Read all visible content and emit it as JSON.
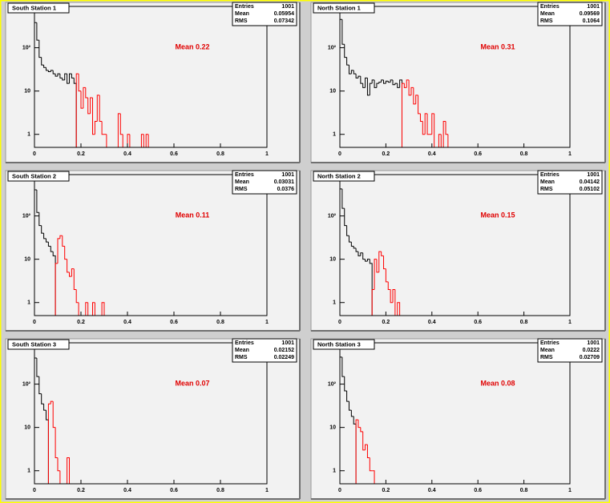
{
  "chart_data": [
    {
      "type": "histogram",
      "title": "South Station 1",
      "annotation": "Mean 0.22",
      "stats": [
        {
          "label": "Entries",
          "value": 1001
        },
        {
          "label": "Mean",
          "value": 0.05954
        },
        {
          "label": "RMS",
          "value": 0.07342
        }
      ],
      "bins": [
        0,
        0.01,
        0.02,
        0.03,
        0.04,
        0.05,
        0.06,
        0.07,
        0.08,
        0.09,
        0.1,
        0.11,
        0.12,
        0.13,
        0.14,
        0.15,
        0.16,
        0.17,
        0.18,
        0.19,
        0.2,
        0.21,
        0.22,
        0.23,
        0.24,
        0.25,
        0.26,
        0.27,
        0.28,
        0.29,
        0.3,
        0.31,
        0.32,
        0.33,
        0.34,
        0.35,
        0.36,
        0.37,
        0.38,
        0.39,
        0.4,
        0.41,
        0.42,
        0.43,
        0.44,
        0.45,
        0.46,
        0.47,
        0.48,
        0.49,
        0.5
      ],
      "series": [
        {
          "color": "#000000",
          "values": [
            380,
            150,
            60,
            40,
            35,
            30,
            28,
            30,
            25,
            22,
            25,
            20,
            18,
            25,
            15,
            25,
            20,
            15,
            null,
            null,
            null,
            null,
            null,
            null,
            null,
            null,
            null,
            null,
            null,
            null,
            null,
            null,
            null,
            null,
            null,
            null,
            null,
            null,
            null,
            null,
            null,
            null,
            null,
            null,
            null,
            null,
            null,
            null,
            null,
            null
          ]
        },
        {
          "color": "#ff0000",
          "values": [
            null,
            null,
            null,
            null,
            null,
            null,
            null,
            null,
            null,
            null,
            null,
            null,
            null,
            null,
            null,
            null,
            null,
            null,
            25,
            10,
            4,
            12,
            7,
            3,
            7,
            1,
            2,
            8,
            2,
            1,
            1,
            0,
            0,
            0,
            0,
            0,
            3,
            1,
            0,
            0,
            1,
            0,
            0,
            0,
            0,
            0,
            1,
            0,
            1,
            0
          ]
        }
      ],
      "xlim": [
        0,
        1
      ],
      "xticks": [
        0,
        0.2,
        0.4,
        0.6,
        0.8,
        1
      ],
      "ylim": [
        0.5,
        900
      ],
      "yticks": [
        1,
        10,
        {
          "value": 100,
          "label": "10²"
        }
      ],
      "log_y": true
    },
    {
      "type": "histogram",
      "title": "North Station 1",
      "annotation": "Mean 0.31",
      "stats": [
        {
          "label": "Entries",
          "value": 1001
        },
        {
          "label": "Mean",
          "value": 0.09569
        },
        {
          "label": "RMS",
          "value": 0.1064
        }
      ],
      "bins": [
        0,
        0.01,
        0.02,
        0.03,
        0.04,
        0.05,
        0.06,
        0.07,
        0.08,
        0.09,
        0.1,
        0.11,
        0.12,
        0.13,
        0.14,
        0.15,
        0.16,
        0.17,
        0.18,
        0.19,
        0.2,
        0.21,
        0.22,
        0.23,
        0.24,
        0.25,
        0.26,
        0.27,
        0.28,
        0.29,
        0.3,
        0.31,
        0.32,
        0.33,
        0.34,
        0.35,
        0.36,
        0.37,
        0.38,
        0.39,
        0.4,
        0.41,
        0.42,
        0.43,
        0.44,
        0.45,
        0.46,
        0.47,
        0.48
      ],
      "series": [
        {
          "color": "#000000",
          "values": [
            450,
            120,
            60,
            40,
            25,
            30,
            25,
            20,
            22,
            15,
            12,
            20,
            8,
            15,
            18,
            12,
            15,
            16,
            18,
            15,
            17,
            16,
            18,
            14,
            15,
            12,
            18,
            null,
            null,
            null,
            null,
            null,
            null,
            null,
            null,
            null,
            null,
            null,
            null,
            null,
            null,
            null,
            null,
            null,
            null,
            null,
            null,
            null
          ]
        },
        {
          "color": "#ff0000",
          "values": [
            null,
            null,
            null,
            null,
            null,
            null,
            null,
            null,
            null,
            null,
            null,
            null,
            null,
            null,
            null,
            null,
            null,
            null,
            null,
            null,
            null,
            null,
            null,
            null,
            null,
            null,
            null,
            15,
            12,
            18,
            8,
            12,
            5,
            8,
            3,
            2,
            1,
            3,
            1,
            1,
            3,
            0,
            0,
            1,
            0,
            2,
            1,
            0
          ]
        }
      ],
      "xlim": [
        0,
        1
      ],
      "xticks": [
        0,
        0.2,
        0.4,
        0.6,
        0.8,
        1
      ],
      "ylim": [
        0.5,
        900
      ],
      "yticks": [
        1,
        10,
        {
          "value": 100,
          "label": "10²"
        }
      ],
      "log_y": true
    },
    {
      "type": "histogram",
      "title": "South Station 2",
      "annotation": "Mean 0.11",
      "stats": [
        {
          "label": "Entries",
          "value": 1001
        },
        {
          "label": "Mean",
          "value": 0.03031
        },
        {
          "label": "RMS",
          "value": 0.0376
        }
      ],
      "bins": [
        0,
        0.01,
        0.02,
        0.03,
        0.04,
        0.05,
        0.06,
        0.07,
        0.08,
        0.09,
        0.1,
        0.11,
        0.12,
        0.13,
        0.14,
        0.15,
        0.16,
        0.17,
        0.18,
        0.19,
        0.2,
        0.21,
        0.22,
        0.23,
        0.24,
        0.25,
        0.26,
        0.27,
        0.28,
        0.29,
        0.3
      ],
      "series": [
        {
          "color": "#000000",
          "values": [
            400,
            120,
            60,
            40,
            30,
            25,
            20,
            15,
            12,
            null,
            null,
            null,
            null,
            null,
            null,
            null,
            null,
            null,
            null,
            null,
            null,
            null,
            null,
            null,
            null,
            null,
            null,
            null,
            null,
            null
          ]
        },
        {
          "color": "#ff0000",
          "values": [
            null,
            null,
            null,
            null,
            null,
            null,
            null,
            null,
            null,
            8,
            30,
            35,
            20,
            10,
            5,
            4,
            6,
            2,
            1,
            0,
            0,
            0,
            1,
            0,
            0,
            1,
            0,
            0,
            0,
            1
          ]
        }
      ],
      "xlim": [
        0,
        1
      ],
      "xticks": [
        0,
        0.2,
        0.4,
        0.6,
        0.8,
        1
      ],
      "ylim": [
        0.5,
        900
      ],
      "yticks": [
        1,
        10,
        {
          "value": 100,
          "label": "10²"
        }
      ],
      "log_y": true
    },
    {
      "type": "histogram",
      "title": "North Station 2",
      "annotation": "Mean 0.15",
      "stats": [
        {
          "label": "Entries",
          "value": 1001
        },
        {
          "label": "Mean",
          "value": 0.04142
        },
        {
          "label": "RMS",
          "value": 0.05102
        }
      ],
      "bins": [
        0,
        0.01,
        0.02,
        0.03,
        0.04,
        0.05,
        0.06,
        0.07,
        0.08,
        0.09,
        0.1,
        0.11,
        0.12,
        0.13,
        0.14,
        0.15,
        0.16,
        0.17,
        0.18,
        0.19,
        0.2,
        0.21,
        0.22,
        0.23,
        0.24,
        0.25,
        0.26
      ],
      "series": [
        {
          "color": "#000000",
          "values": [
            420,
            150,
            60,
            35,
            25,
            20,
            18,
            15,
            12,
            14,
            10,
            9,
            10,
            8,
            null,
            null,
            null,
            null,
            null,
            null,
            null,
            null,
            null,
            null,
            null,
            null
          ]
        },
        {
          "color": "#ff0000",
          "values": [
            null,
            null,
            null,
            null,
            null,
            null,
            null,
            null,
            null,
            null,
            null,
            null,
            null,
            null,
            2,
            10,
            5,
            15,
            12,
            6,
            3,
            2,
            1,
            2,
            0,
            1
          ]
        }
      ],
      "xlim": [
        0,
        1
      ],
      "xticks": [
        0,
        0.2,
        0.4,
        0.6,
        0.8,
        1
      ],
      "ylim": [
        0.5,
        900
      ],
      "yticks": [
        1,
        10,
        {
          "value": 100,
          "label": "10²"
        }
      ],
      "log_y": true
    },
    {
      "type": "histogram",
      "title": "South Station 3",
      "annotation": "Mean 0.07",
      "stats": [
        {
          "label": "Entries",
          "value": 1001
        },
        {
          "label": "Mean",
          "value": 0.02152
        },
        {
          "label": "RMS",
          "value": 0.02249
        }
      ],
      "bins": [
        0,
        0.01,
        0.02,
        0.03,
        0.04,
        0.05,
        0.06,
        0.07,
        0.08,
        0.09,
        0.1,
        0.11,
        0.12,
        0.13,
        0.14,
        0.15
      ],
      "series": [
        {
          "color": "#000000",
          "values": [
            400,
            150,
            60,
            35,
            25,
            15,
            null,
            null,
            null,
            null,
            null,
            null,
            null,
            null,
            null
          ]
        },
        {
          "color": "#ff0000",
          "values": [
            null,
            null,
            null,
            null,
            null,
            null,
            35,
            40,
            10,
            2,
            1,
            0,
            0,
            0,
            2
          ]
        }
      ],
      "xlim": [
        0,
        1
      ],
      "xticks": [
        0,
        0.2,
        0.4,
        0.6,
        0.8,
        1
      ],
      "ylim": [
        0.5,
        900
      ],
      "yticks": [
        1,
        10,
        {
          "value": 100,
          "label": "10²"
        }
      ],
      "log_y": true
    },
    {
      "type": "histogram",
      "title": "North Station 3",
      "annotation": "Mean 0.08",
      "stats": [
        {
          "label": "Entries",
          "value": 1001
        },
        {
          "label": "Mean",
          "value": 0.0222
        },
        {
          "label": "RMS",
          "value": 0.02709
        }
      ],
      "bins": [
        0,
        0.01,
        0.02,
        0.03,
        0.04,
        0.05,
        0.06,
        0.07,
        0.08,
        0.09,
        0.1,
        0.11,
        0.12,
        0.13,
        0.14,
        0.15
      ],
      "series": [
        {
          "color": "#000000",
          "values": [
            420,
            150,
            70,
            40,
            25,
            18,
            12,
            null,
            null,
            null,
            null,
            null,
            null,
            null,
            null
          ]
        },
        {
          "color": "#ff0000",
          "values": [
            null,
            null,
            null,
            null,
            null,
            null,
            null,
            15,
            10,
            8,
            3,
            4,
            2,
            1,
            1
          ]
        }
      ],
      "xlim": [
        0,
        1
      ],
      "xticks": [
        0,
        0.2,
        0.4,
        0.6,
        0.8,
        1
      ],
      "ylim": [
        0.5,
        900
      ],
      "yticks": [
        1,
        10,
        {
          "value": 100,
          "label": "10²"
        }
      ],
      "log_y": true
    }
  ]
}
